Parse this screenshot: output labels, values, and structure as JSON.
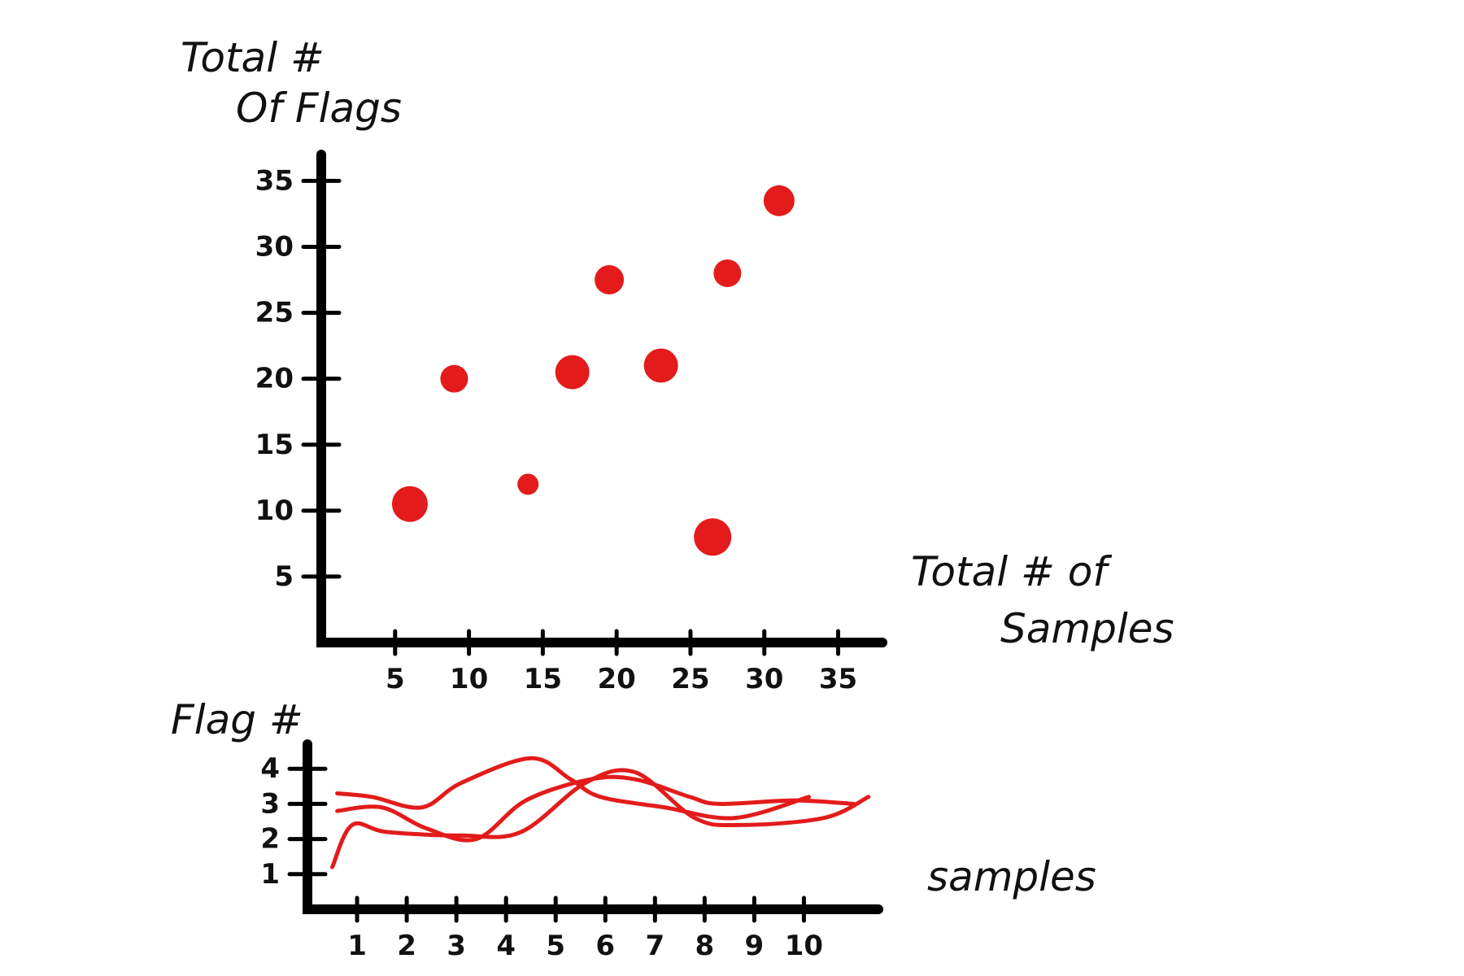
{
  "chart_data": [
    {
      "type": "scatter",
      "title": "",
      "ylabel_lines": [
        "Total #",
        "Of Flags"
      ],
      "xlabel_lines": [
        "Total # of",
        "Samples"
      ],
      "xlim": [
        0,
        38
      ],
      "ylim": [
        0,
        37
      ],
      "x_ticks": [
        5,
        10,
        15,
        20,
        25,
        30,
        35
      ],
      "x_tick_labels": [
        "5",
        "10",
        "15",
        "20",
        "25",
        "30",
        "35"
      ],
      "y_ticks": [
        5,
        10,
        15,
        20,
        25,
        30,
        35
      ],
      "y_tick_labels": [
        "5",
        "10",
        "15",
        "20",
        "25",
        "30",
        "35"
      ],
      "point_color": "#e31b1b",
      "points": [
        {
          "x": 6,
          "y": 10.5,
          "size": 22
        },
        {
          "x": 9,
          "y": 20,
          "size": 17
        },
        {
          "x": 14,
          "y": 12,
          "size": 13
        },
        {
          "x": 17,
          "y": 20.5,
          "size": 21
        },
        {
          "x": 19.5,
          "y": 27.5,
          "size": 18
        },
        {
          "x": 23,
          "y": 21,
          "size": 21
        },
        {
          "x": 26.5,
          "y": 8,
          "size": 23
        },
        {
          "x": 27.5,
          "y": 28,
          "size": 17
        },
        {
          "x": 31,
          "y": 33.5,
          "size": 19
        }
      ]
    },
    {
      "type": "line",
      "title": "",
      "ylabel": "Flag #",
      "xlabel": "samples",
      "xlim": [
        0,
        11.5
      ],
      "ylim": [
        0,
        4.7
      ],
      "x_ticks": [
        1,
        2,
        3,
        4,
        5,
        6,
        7,
        8,
        9,
        10
      ],
      "x_tick_labels": [
        "1",
        "2",
        "3",
        "4",
        "5",
        "6",
        "7",
        "8",
        "9",
        "10"
      ],
      "y_ticks": [
        1,
        2,
        3,
        4
      ],
      "y_tick_labels": [
        "1",
        "2",
        "3",
        "4"
      ],
      "line_color": "#e31b1b",
      "series": [
        {
          "x": [
            0.6,
            1.3,
            2.3,
            3.1,
            4.5,
            5.3,
            5.9,
            7.2,
            8.6,
            10.1
          ],
          "y": [
            3.3,
            3.2,
            2.9,
            3.6,
            4.3,
            3.7,
            3.2,
            2.9,
            2.6,
            3.2
          ]
        },
        {
          "x": [
            0.6,
            1.5,
            2.4,
            3.4,
            4.4,
            5.7,
            6.6,
            7.7,
            8.3,
            9.8,
            11.0
          ],
          "y": [
            2.8,
            2.9,
            2.3,
            2.0,
            3.1,
            3.7,
            3.7,
            3.2,
            3.0,
            3.1,
            3.0
          ]
        },
        {
          "x": [
            0.5,
            0.9,
            1.6,
            3.1,
            4.3,
            5.6,
            6.6,
            7.8,
            8.7,
            10.4,
            11.3
          ],
          "y": [
            1.2,
            2.4,
            2.2,
            2.1,
            2.2,
            3.6,
            3.9,
            2.6,
            2.4,
            2.6,
            3.2
          ]
        }
      ]
    }
  ]
}
